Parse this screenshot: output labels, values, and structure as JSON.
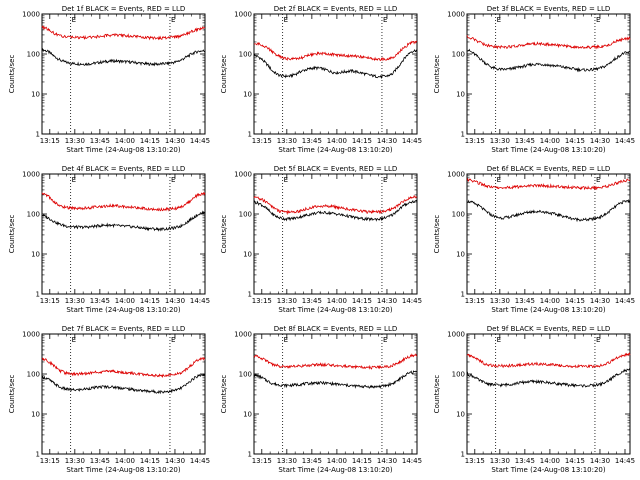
{
  "colors": {
    "events": "#000000",
    "lld": "#dd0000",
    "axis": "#000000"
  },
  "common": {
    "ylabel": "Counts/sec",
    "xlabel": "Start Time (24-Aug-08 13:10:20)",
    "yticks": [
      "1",
      "10",
      "100",
      "1000"
    ],
    "xticks": [
      "13:15",
      "13:30",
      "13:45",
      "14:00",
      "14:15",
      "14:30",
      "14:45"
    ],
    "marker": "E",
    "scale": "log",
    "grid": false
  },
  "chart_data": [
    {
      "type": "line",
      "title": "Det 1f BLACK = Events, RED = LLD",
      "ylim": [
        1,
        1000
      ],
      "x_range": [
        "13:10:20",
        "14:48:00"
      ],
      "markers": [
        "13:27:30",
        "14:27:00"
      ],
      "series": [
        {
          "name": "Events",
          "shape": [
            130,
            115,
            88,
            70,
            62,
            58,
            57,
            56,
            57,
            60,
            63,
            66,
            67,
            66,
            64,
            62,
            60,
            57,
            56,
            56,
            57,
            59,
            62,
            70,
            85,
            105,
            118,
            120
          ]
        },
        {
          "name": "LLD",
          "shape": [
            480,
            420,
            330,
            290,
            270,
            260,
            258,
            258,
            262,
            270,
            282,
            292,
            298,
            296,
            288,
            278,
            268,
            258,
            252,
            250,
            252,
            256,
            262,
            280,
            320,
            380,
            430,
            440
          ]
        }
      ]
    },
    {
      "type": "line",
      "title": "Det 2f BLACK = Events, RED = LLD",
      "ylim": [
        1,
        1000
      ],
      "x_range": [
        "13:10:20",
        "14:48:00"
      ],
      "markers": [
        "13:27:30",
        "14:27:00"
      ],
      "series": [
        {
          "name": "Events",
          "shape": [
            95,
            80,
            58,
            38,
            30,
            28,
            28,
            32,
            38,
            42,
            45,
            44,
            40,
            35,
            34,
            36,
            38,
            36,
            33,
            30,
            28,
            27,
            28,
            32,
            50,
            80,
            115,
            125
          ]
        },
        {
          "name": "LLD",
          "shape": [
            190,
            175,
            150,
            115,
            90,
            78,
            75,
            76,
            82,
            92,
            100,
            104,
            102,
            98,
            94,
            92,
            90,
            88,
            84,
            80,
            76,
            74,
            74,
            80,
            110,
            150,
            190,
            200
          ]
        }
      ]
    },
    {
      "type": "line",
      "title": "Det 3f BLACK = Events, RED = LLD",
      "ylim": [
        1,
        1000
      ],
      "x_range": [
        "13:10:20",
        "14:48:00"
      ],
      "markers": [
        "13:27:30",
        "14:27:00"
      ],
      "series": [
        {
          "name": "Events",
          "shape": [
            130,
            105,
            80,
            60,
            47,
            42,
            41,
            42,
            45,
            48,
            52,
            55,
            56,
            54,
            52,
            50,
            47,
            44,
            42,
            40,
            40,
            41,
            44,
            50,
            65,
            85,
            105,
            110
          ]
        },
        {
          "name": "LLD",
          "shape": [
            280,
            240,
            200,
            170,
            155,
            150,
            150,
            152,
            158,
            166,
            174,
            180,
            182,
            178,
            172,
            166,
            160,
            154,
            148,
            146,
            146,
            148,
            152,
            160,
            185,
            215,
            240,
            250
          ]
        }
      ]
    },
    {
      "type": "line",
      "title": "Det 4f BLACK = Events, RED = LLD",
      "ylim": [
        1,
        1000
      ],
      "x_range": [
        "13:10:20",
        "14:48:00"
      ],
      "markers": [
        "13:27:30",
        "14:27:00"
      ],
      "series": [
        {
          "name": "Events",
          "shape": [
            95,
            80,
            65,
            55,
            50,
            48,
            47,
            47,
            48,
            50,
            52,
            53,
            52,
            50,
            49,
            48,
            46,
            44,
            43,
            42,
            42,
            43,
            45,
            50,
            62,
            80,
            100,
            110
          ]
        },
        {
          "name": "LLD",
          "shape": [
            330,
            280,
            200,
            160,
            145,
            140,
            138,
            140,
            145,
            150,
            155,
            160,
            162,
            158,
            152,
            148,
            142,
            136,
            132,
            130,
            130,
            132,
            136,
            148,
            180,
            240,
            310,
            330
          ]
        }
      ]
    },
    {
      "type": "line",
      "title": "Det 5f BLACK = Events, RED = LLD",
      "ylim": [
        1,
        1000
      ],
      "x_range": [
        "13:10:20",
        "14:48:00"
      ],
      "markers": [
        "13:27:30",
        "14:27:00"
      ],
      "series": [
        {
          "name": "Events",
          "shape": [
            200,
            180,
            140,
            100,
            82,
            76,
            76,
            80,
            88,
            96,
            104,
            108,
            108,
            104,
            98,
            92,
            86,
            80,
            76,
            74,
            74,
            76,
            82,
            96,
            130,
            170,
            200,
            210
          ]
        },
        {
          "name": "LLD",
          "shape": [
            260,
            240,
            200,
            150,
            120,
            110,
            110,
            115,
            125,
            138,
            150,
            158,
            160,
            155,
            146,
            138,
            130,
            122,
            116,
            112,
            112,
            114,
            120,
            135,
            170,
            220,
            260,
            275
          ]
        }
      ]
    },
    {
      "type": "line",
      "title": "Det 6f BLACK = Events, RED = LLD",
      "ylim": [
        1,
        1000
      ],
      "x_range": [
        "13:10:20",
        "14:48:00"
      ],
      "markers": [
        "13:27:30",
        "14:27:00"
      ],
      "series": [
        {
          "name": "Events",
          "shape": [
            210,
            190,
            160,
            120,
            95,
            82,
            80,
            84,
            92,
            102,
            110,
            116,
            116,
            112,
            104,
            96,
            88,
            80,
            74,
            72,
            72,
            76,
            84,
            98,
            130,
            170,
            205,
            215
          ]
        },
        {
          "name": "LLD",
          "shape": [
            720,
            680,
            590,
            520,
            480,
            460,
            458,
            462,
            472,
            486,
            500,
            512,
            516,
            510,
            500,
            490,
            478,
            466,
            456,
            450,
            450,
            454,
            462,
            480,
            540,
            610,
            680,
            700
          ]
        }
      ]
    },
    {
      "type": "line",
      "title": "Det 7f BLACK = Events, RED = LLD",
      "ylim": [
        1,
        1000
      ],
      "x_range": [
        "13:10:20",
        "14:48:00"
      ],
      "markers": [
        "13:27:30",
        "14:27:00"
      ],
      "series": [
        {
          "name": "Events",
          "shape": [
            85,
            75,
            58,
            46,
            42,
            40,
            40,
            42,
            44,
            46,
            48,
            48,
            47,
            45,
            43,
            41,
            39,
            38,
            37,
            36,
            36,
            37,
            39,
            44,
            55,
            75,
            92,
            100
          ]
        },
        {
          "name": "LLD",
          "shape": [
            240,
            210,
            160,
            120,
            105,
            100,
            100,
            102,
            106,
            110,
            114,
            116,
            115,
            112,
            108,
            104,
            100,
            96,
            94,
            92,
            92,
            94,
            98,
            108,
            135,
            180,
            230,
            245
          ]
        }
      ]
    },
    {
      "type": "line",
      "title": "Det 8f BLACK = Events, RED = LLD",
      "ylim": [
        1,
        1000
      ],
      "x_range": [
        "13:10:20",
        "14:48:00"
      ],
      "markers": [
        "13:27:30",
        "14:27:00"
      ],
      "series": [
        {
          "name": "Events",
          "shape": [
            95,
            85,
            70,
            58,
            54,
            52,
            52,
            54,
            56,
            58,
            60,
            60,
            59,
            57,
            55,
            53,
            51,
            50,
            49,
            48,
            48,
            49,
            52,
            58,
            72,
            92,
            110,
            115
          ]
        },
        {
          "name": "LLD",
          "shape": [
            290,
            260,
            210,
            175,
            160,
            155,
            154,
            156,
            160,
            165,
            170,
            172,
            170,
            166,
            162,
            158,
            154,
            150,
            148,
            146,
            146,
            148,
            152,
            165,
            195,
            240,
            285,
            300
          ]
        }
      ]
    },
    {
      "type": "line",
      "title": "Det 9f BLACK = Events, RED = LLD",
      "ylim": [
        1,
        1000
      ],
      "x_range": [
        "13:10:20",
        "14:48:00"
      ],
      "markers": [
        "13:27:30",
        "14:27:00"
      ],
      "series": [
        {
          "name": "Events",
          "shape": [
            100,
            88,
            70,
            60,
            55,
            53,
            53,
            55,
            58,
            61,
            64,
            65,
            64,
            62,
            60,
            57,
            55,
            53,
            52,
            51,
            51,
            52,
            55,
            62,
            78,
            100,
            120,
            125
          ]
        },
        {
          "name": "LLD",
          "shape": [
            300,
            270,
            220,
            180,
            165,
            160,
            160,
            162,
            166,
            172,
            178,
            180,
            178,
            174,
            170,
            166,
            162,
            158,
            156,
            154,
            154,
            156,
            160,
            175,
            210,
            260,
            300,
            310
          ]
        }
      ]
    }
  ]
}
